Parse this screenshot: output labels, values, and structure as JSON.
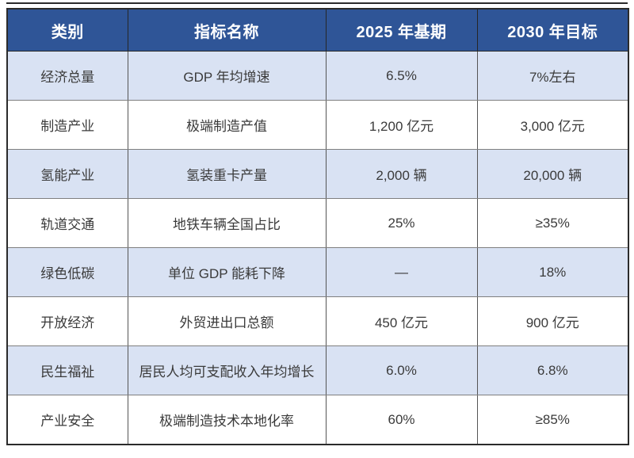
{
  "colors": {
    "header_bg": "#2F5597",
    "header_text": "#FFFFFF",
    "row_alt_bg": "#D9E2F3",
    "row_bg": "#FFFFFF",
    "cell_text": "#3A3A3A",
    "outer_border": "#2B2B2B",
    "inner_vertical_border": "#555555",
    "inner_horizontal_border": "#7F7F7F"
  },
  "table": {
    "columns": [
      {
        "label": "类别"
      },
      {
        "label": "指标名称"
      },
      {
        "label": "2025 年基期"
      },
      {
        "label": "2030 年目标"
      }
    ],
    "rows": [
      {
        "category": "经济总量",
        "indicator": "GDP 年均增速",
        "base_2025": "6.5%",
        "target_2030": "7%左右"
      },
      {
        "category": "制造产业",
        "indicator": "极端制造产值",
        "base_2025": "1,200 亿元",
        "target_2030": "3,000 亿元"
      },
      {
        "category": "氢能产业",
        "indicator": "氢装重卡产量",
        "base_2025": "2,000 辆",
        "target_2030": "20,000 辆"
      },
      {
        "category": "轨道交通",
        "indicator": "地铁车辆全国占比",
        "base_2025": "25%",
        "target_2030": "≥35%"
      },
      {
        "category": "绿色低碳",
        "indicator": "单位 GDP 能耗下降",
        "base_2025": "—",
        "target_2030": "18%"
      },
      {
        "category": "开放经济",
        "indicator": "外贸进出口总额",
        "base_2025": "450 亿元",
        "target_2030": "900 亿元"
      },
      {
        "category": "民生福祉",
        "indicator": "居民人均可支配收入年均增长",
        "base_2025": "6.0%",
        "target_2030": "6.8%"
      },
      {
        "category": "产业安全",
        "indicator": "极端制造技术本地化率",
        "base_2025": "60%",
        "target_2030": "≥85%"
      }
    ]
  }
}
